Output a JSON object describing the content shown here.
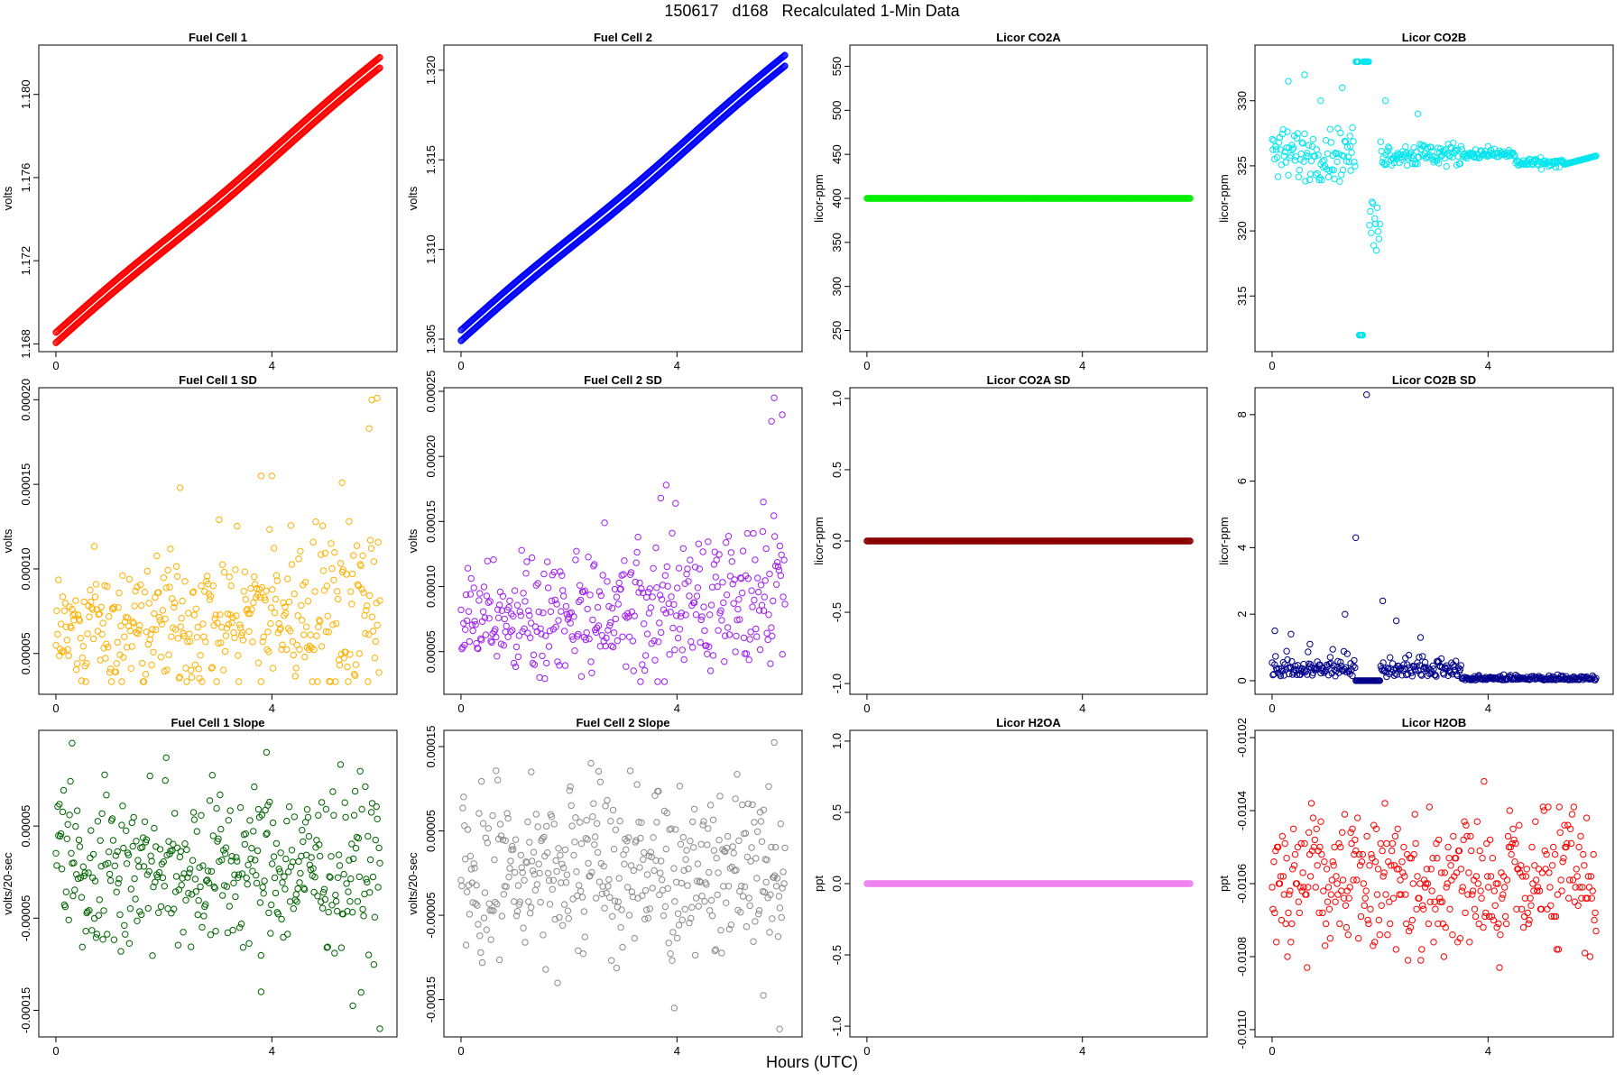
{
  "figure": {
    "title": "150617   d168   Recalculated 1-Min Data",
    "xlabel": "Hours (UTC)"
  },
  "chart_data": [
    {
      "type": "scatter",
      "title": "Fuel Cell 1",
      "ylabel": "volts",
      "color": "#ff0000",
      "xlim": [
        -0.25,
        6.25
      ],
      "ylim": [
        1.1678,
        1.1822
      ],
      "xticks": [
        0,
        4
      ],
      "yticks": [
        1.168,
        1.172,
        1.176,
        1.18
      ],
      "yticklabels": [
        "1.168",
        "1.172",
        "1.176",
        "1.180"
      ],
      "pattern": "ramp-band",
      "y_start": 1.1683,
      "y_end": 1.1815,
      "band": 0.0005
    },
    {
      "type": "scatter",
      "title": "Fuel Cell 2",
      "ylabel": "volts",
      "color": "#0000ff",
      "xlim": [
        -0.25,
        6.25
      ],
      "ylim": [
        1.3045,
        1.3212
      ],
      "xticks": [
        0,
        4
      ],
      "yticks": [
        1.305,
        1.31,
        1.315,
        1.32
      ],
      "yticklabels": [
        "1.305",
        "1.310",
        "1.315",
        "1.320"
      ],
      "pattern": "ramp-band",
      "y_start": 1.3052,
      "y_end": 1.3205,
      "band": 0.0006
    },
    {
      "type": "scatter",
      "title": "Licor CO2A",
      "ylabel": "licor-ppm",
      "color": "#00ee00",
      "xlim": [
        -0.25,
        6.25
      ],
      "ylim": [
        230,
        570
      ],
      "xticks": [
        0,
        4
      ],
      "yticks": [
        250,
        300,
        350,
        400,
        450,
        500,
        550
      ],
      "yticklabels": [
        "250",
        "300",
        "350",
        "400",
        "450",
        "500",
        "550"
      ],
      "pattern": "constant",
      "value": 400
    },
    {
      "type": "scatter",
      "title": "Licor CO2B",
      "ylabel": "licor-ppm",
      "color": "#00e5ee",
      "xlim": [
        -0.25,
        6.25
      ],
      "ylim": [
        311,
        334
      ],
      "xticks": [
        0,
        4
      ],
      "yticks": [
        315,
        320,
        325,
        330
      ],
      "yticklabels": [
        "315",
        "320",
        "325",
        "330"
      ],
      "pattern": "co2b"
    },
    {
      "type": "scatter",
      "title": "Fuel Cell 1 SD",
      "ylabel": "volts",
      "color": "#ffb000",
      "xlim": [
        -0.25,
        6.25
      ],
      "ylim": [
        2.8e-05,
        0.000205
      ],
      "xticks": [
        0,
        4
      ],
      "yticks": [
        5e-05,
        0.0001,
        0.00015,
        0.0002
      ],
      "yticklabels": [
        "0.00005",
        "0.00010",
        "0.00015",
        "0.00020"
      ],
      "pattern": "noise-up",
      "base": 6.2e-05,
      "spread": 2.2e-05,
      "growth": 1.8e-05,
      "outliers": [
        [
          5.8,
          0.000183
        ],
        [
          5.85,
          0.0002
        ],
        [
          5.95,
          0.000201
        ],
        [
          2.3,
          0.000148
        ],
        [
          3.8,
          0.000155
        ],
        [
          4.0,
          0.000155
        ],
        [
          5.3,
          0.000151
        ]
      ]
    },
    {
      "type": "scatter",
      "title": "Fuel Cell 2 SD",
      "ylabel": "volts",
      "color": "#a020f0",
      "xlim": [
        -0.25,
        6.25
      ],
      "ylim": [
        2e-05,
        0.00025
      ],
      "xticks": [
        0,
        4
      ],
      "yticks": [
        5e-05,
        0.0001,
        0.00015,
        0.0002,
        0.00025
      ],
      "yticklabels": [
        "0.00005",
        "0.00010",
        "0.00015",
        "0.00020",
        "0.00025"
      ],
      "pattern": "noise-up",
      "base": 7.2e-05,
      "spread": 2.6e-05,
      "growth": 2.2e-05,
      "outliers": [
        [
          5.8,
          0.000245
        ],
        [
          5.75,
          0.000227
        ],
        [
          5.95,
          0.000232
        ],
        [
          3.8,
          0.000178
        ],
        [
          3.7,
          0.000168
        ],
        [
          5.6,
          0.000165
        ]
      ]
    },
    {
      "type": "scatter",
      "title": "Licor CO2A SD",
      "ylabel": "licor-ppm",
      "color": "#8b0000",
      "xlim": [
        -0.25,
        6.25
      ],
      "ylim": [
        -1.05,
        1.05
      ],
      "xticks": [
        0,
        4
      ],
      "yticks": [
        -1.0,
        -0.5,
        0.0,
        0.5,
        1.0
      ],
      "yticklabels": [
        "-1.0",
        "-0.5",
        "0.0",
        "0.5",
        "1.0"
      ],
      "pattern": "constant",
      "value": 0.0
    },
    {
      "type": "scatter",
      "title": "Licor CO2B SD",
      "ylabel": "licor-ppm",
      "color": "#00008b",
      "xlim": [
        -0.25,
        6.25
      ],
      "ylim": [
        -0.3,
        8.7
      ],
      "xticks": [
        0,
        4
      ],
      "yticks": [
        0,
        2,
        4,
        6,
        8
      ],
      "yticklabels": [
        "0",
        "2",
        "4",
        "6",
        "8"
      ],
      "pattern": "co2bsd"
    },
    {
      "type": "scatter",
      "title": "Fuel Cell 1 Slope",
      "ylabel": "volts/20-sec",
      "color": "#006400",
      "xlim": [
        -0.25,
        6.25
      ],
      "ylim": [
        -0.000175,
        0.00015
      ],
      "xticks": [
        0,
        4
      ],
      "yticks": [
        -0.00015,
        -5e-05,
        5e-05
      ],
      "yticklabels": [
        "-0.00015",
        "-0.00005",
        "0.00005"
      ],
      "pattern": "noise",
      "base": 5e-06,
      "spread": 4.5e-05,
      "outliers": [
        [
          0.3,
          0.00014
        ],
        [
          6.0,
          -0.00017
        ],
        [
          5.5,
          -0.000145
        ],
        [
          3.8,
          -0.00013
        ],
        [
          3.9,
          0.00013
        ]
      ]
    },
    {
      "type": "scatter",
      "title": "Fuel Cell 2 Slope",
      "ylabel": "volts/20-sec",
      "color": "#8c8c8c",
      "xlim": [
        -0.25,
        6.25
      ],
      "ylim": [
        -0.00019,
        0.000165
      ],
      "xticks": [
        0,
        4
      ],
      "yticks": [
        -0.00015,
        -5e-05,
        5e-05,
        0.00015
      ],
      "yticklabels": [
        "-0.00015",
        "-0.00005",
        "0.00005",
        "0.00015"
      ],
      "pattern": "noise",
      "base": 0.0,
      "spread": 5e-05,
      "outliers": [
        [
          5.8,
          0.000155
        ],
        [
          5.9,
          -0.000185
        ],
        [
          3.95,
          -0.00016
        ],
        [
          5.6,
          -0.000145
        ],
        [
          1.3,
          0.00012
        ]
      ]
    },
    {
      "type": "scatter",
      "title": "Licor H2OA",
      "ylabel": "ppt",
      "color": "#ee82ee",
      "xlim": [
        -0.25,
        6.25
      ],
      "ylim": [
        -1.05,
        1.05
      ],
      "xticks": [
        0,
        4
      ],
      "yticks": [
        -1.0,
        -0.5,
        0.0,
        0.5,
        1.0
      ],
      "yticklabels": [
        "-1.0",
        "-0.5",
        "0.0",
        "0.5",
        "1.0"
      ],
      "pattern": "constant",
      "value": 0.0
    },
    {
      "type": "scatter",
      "title": "Licor H2OB",
      "ylabel": "ppt",
      "color": "#ff0000",
      "xlim": [
        -0.25,
        6.25
      ],
      "ylim": [
        -0.01101,
        -0.01019
      ],
      "xticks": [
        0,
        4
      ],
      "yticks": [
        -0.011,
        -0.0108,
        -0.0106,
        -0.0104,
        -0.0102
      ],
      "yticklabels": [
        "-0.0110",
        "-0.0108",
        "-0.0106",
        "-0.0104",
        "-0.0102"
      ],
      "pattern": "quantized",
      "base": -0.01059,
      "spread": 0.00017,
      "step": 1e-05
    }
  ]
}
